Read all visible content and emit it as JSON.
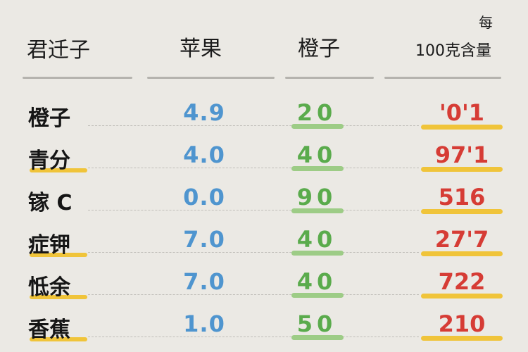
{
  "header": {
    "col1": "君迁子",
    "col2": "苹果",
    "col3": "橙子",
    "col4_line1": "每",
    "col4_line2": "100克含量"
  },
  "rows": [
    {
      "name": "橙子",
      "apple": "4.9",
      "orange": "20",
      "per100g": "'0'1",
      "name_underline": false
    },
    {
      "name": "青分",
      "apple": "4.0",
      "orange": "40",
      "per100g": "97'1",
      "name_underline": true
    },
    {
      "name": "镓 C",
      "apple": "0.0",
      "orange": "90",
      "per100g": "516",
      "name_underline": false
    },
    {
      "name": "症钾",
      "apple": "7.0",
      "orange": "40",
      "per100g": "27'7",
      "name_underline": true
    },
    {
      "name": "怟余",
      "apple": "7.0",
      "orange": "40",
      "per100g": "722",
      "name_underline": true
    },
    {
      "name": "香蕉",
      "apple": "1.0",
      "orange": "50",
      "per100g": "210",
      "name_underline": true
    }
  ],
  "colors": {
    "apple": "#4f95cf",
    "orange": "#5aab4c",
    "per100g": "#d63c35",
    "highlight": "#f0c43a"
  }
}
